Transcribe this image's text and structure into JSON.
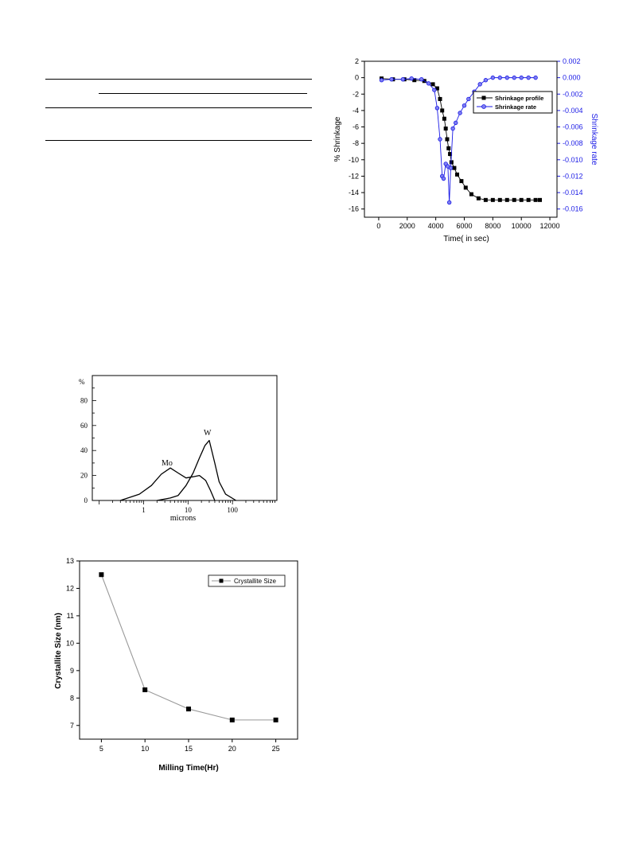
{
  "chart_data": [
    {
      "type": "line",
      "xlabel": "Time( in sec)",
      "ylabel": "% Shrinkage",
      "y2label": "Shrinkage rate",
      "xlim": [
        -1000,
        12500
      ],
      "ylim": [
        -17,
        2
      ],
      "y2lim": [
        -0.017,
        0.002
      ],
      "xticks": [
        "0",
        "2000",
        "4000",
        "6000",
        "8000",
        "10000",
        "12000"
      ],
      "yticks": [
        "2",
        "0",
        "-2",
        "-4",
        "-6",
        "-8",
        "-10",
        "-12",
        "-14",
        "-16"
      ],
      "y2ticks": [
        "0.002",
        "0.000",
        "-0.002",
        "-0.004",
        "-0.006",
        "-0.008",
        "-0.010",
        "-0.012",
        "-0.014",
        "-0.016"
      ],
      "legend_position": "top-right",
      "series": [
        {
          "name": "Shrinkage profile",
          "axis": "left",
          "color": "#000000",
          "marker": "square",
          "points": [
            [
              200,
              -0.1
            ],
            [
              1000,
              -0.2
            ],
            [
              1800,
              -0.2
            ],
            [
              2500,
              -0.3
            ],
            [
              3200,
              -0.4
            ],
            [
              3800,
              -0.8
            ],
            [
              4100,
              -1.3
            ],
            [
              4300,
              -2.6
            ],
            [
              4450,
              -4.0
            ],
            [
              4600,
              -5.0
            ],
            [
              4700,
              -6.2
            ],
            [
              4800,
              -7.5
            ],
            [
              4900,
              -8.6
            ],
            [
              5000,
              -9.3
            ],
            [
              5100,
              -10.3
            ],
            [
              5300,
              -11.0
            ],
            [
              5500,
              -11.8
            ],
            [
              5800,
              -12.6
            ],
            [
              6100,
              -13.4
            ],
            [
              6500,
              -14.2
            ],
            [
              7000,
              -14.7
            ],
            [
              7500,
              -14.9
            ],
            [
              8000,
              -14.9
            ],
            [
              8500,
              -14.9
            ],
            [
              9000,
              -14.9
            ],
            [
              9500,
              -14.9
            ],
            [
              10000,
              -14.9
            ],
            [
              10500,
              -14.9
            ],
            [
              11000,
              -14.9
            ],
            [
              11300,
              -14.9
            ]
          ]
        },
        {
          "name": "Shrinkage rate",
          "axis": "right",
          "color": "#1a1ae6",
          "marker": "circle",
          "points": [
            [
              200,
              -0.0003
            ],
            [
              900,
              -0.0002
            ],
            [
              1700,
              -0.0002
            ],
            [
              2300,
              -0.0001
            ],
            [
              3000,
              -0.0002
            ],
            [
              3500,
              -0.0007
            ],
            [
              3900,
              -0.0015
            ],
            [
              4100,
              -0.0037
            ],
            [
              4300,
              -0.0075
            ],
            [
              4450,
              -0.012
            ],
            [
              4550,
              -0.0123
            ],
            [
              4700,
              -0.0105
            ],
            [
              4850,
              -0.0108
            ],
            [
              4950,
              -0.0152
            ],
            [
              5050,
              -0.011
            ],
            [
              5200,
              -0.0062
            ],
            [
              5400,
              -0.0055
            ],
            [
              5700,
              -0.0043
            ],
            [
              6000,
              -0.0034
            ],
            [
              6300,
              -0.0026
            ],
            [
              6700,
              -0.0017
            ],
            [
              7100,
              -0.0008
            ],
            [
              7500,
              -0.0003
            ],
            [
              8000,
              0.0
            ],
            [
              8500,
              0.0
            ],
            [
              9000,
              0.0
            ],
            [
              9500,
              0.0
            ],
            [
              10000,
              0.0
            ],
            [
              10500,
              0.0
            ],
            [
              11000,
              0.0
            ]
          ]
        }
      ]
    },
    {
      "type": "line",
      "xlabel": "microns",
      "ylabel": "%",
      "xscale": "log",
      "xlim": [
        0.07,
        1000
      ],
      "ylim": [
        0,
        100
      ],
      "xticks": [
        "1",
        "10",
        "100"
      ],
      "yticks": [
        "0",
        "20",
        "40",
        "60",
        "80"
      ],
      "series": [
        {
          "name": "Mo",
          "color": "#000000",
          "points": [
            [
              0.3,
              0
            ],
            [
              0.8,
              5
            ],
            [
              1.5,
              12
            ],
            [
              2.5,
              21
            ],
            [
              4,
              26
            ],
            [
              6,
              22
            ],
            [
              9,
              18
            ],
            [
              13,
              19
            ],
            [
              18,
              20
            ],
            [
              25,
              16
            ],
            [
              32,
              8
            ],
            [
              40,
              0
            ]
          ]
        },
        {
          "name": "W",
          "color": "#000000",
          "points": [
            [
              2,
              0
            ],
            [
              4,
              2
            ],
            [
              6,
              4
            ],
            [
              9,
              12
            ],
            [
              13,
              22
            ],
            [
              18,
              34
            ],
            [
              24,
              44
            ],
            [
              30,
              48
            ],
            [
              40,
              30
            ],
            [
              50,
              15
            ],
            [
              70,
              5
            ],
            [
              120,
              0
            ]
          ]
        }
      ]
    },
    {
      "type": "line",
      "xlabel": "Milling Time(Hr)",
      "ylabel": "Crystallite Size (nm)",
      "xlim": [
        2.5,
        27.5
      ],
      "ylim": [
        6.5,
        13
      ],
      "xticks": [
        "5",
        "10",
        "15",
        "20",
        "25"
      ],
      "yticks": [
        "7",
        "8",
        "9",
        "10",
        "11",
        "12",
        "13"
      ],
      "legend_position": "top-right",
      "series": [
        {
          "name": "Crystallite Size",
          "color": "#000000",
          "marker": "square",
          "x": [
            5,
            10,
            15,
            20,
            25
          ],
          "y": [
            12.5,
            8.3,
            7.6,
            7.2,
            7.2
          ]
        }
      ]
    }
  ]
}
